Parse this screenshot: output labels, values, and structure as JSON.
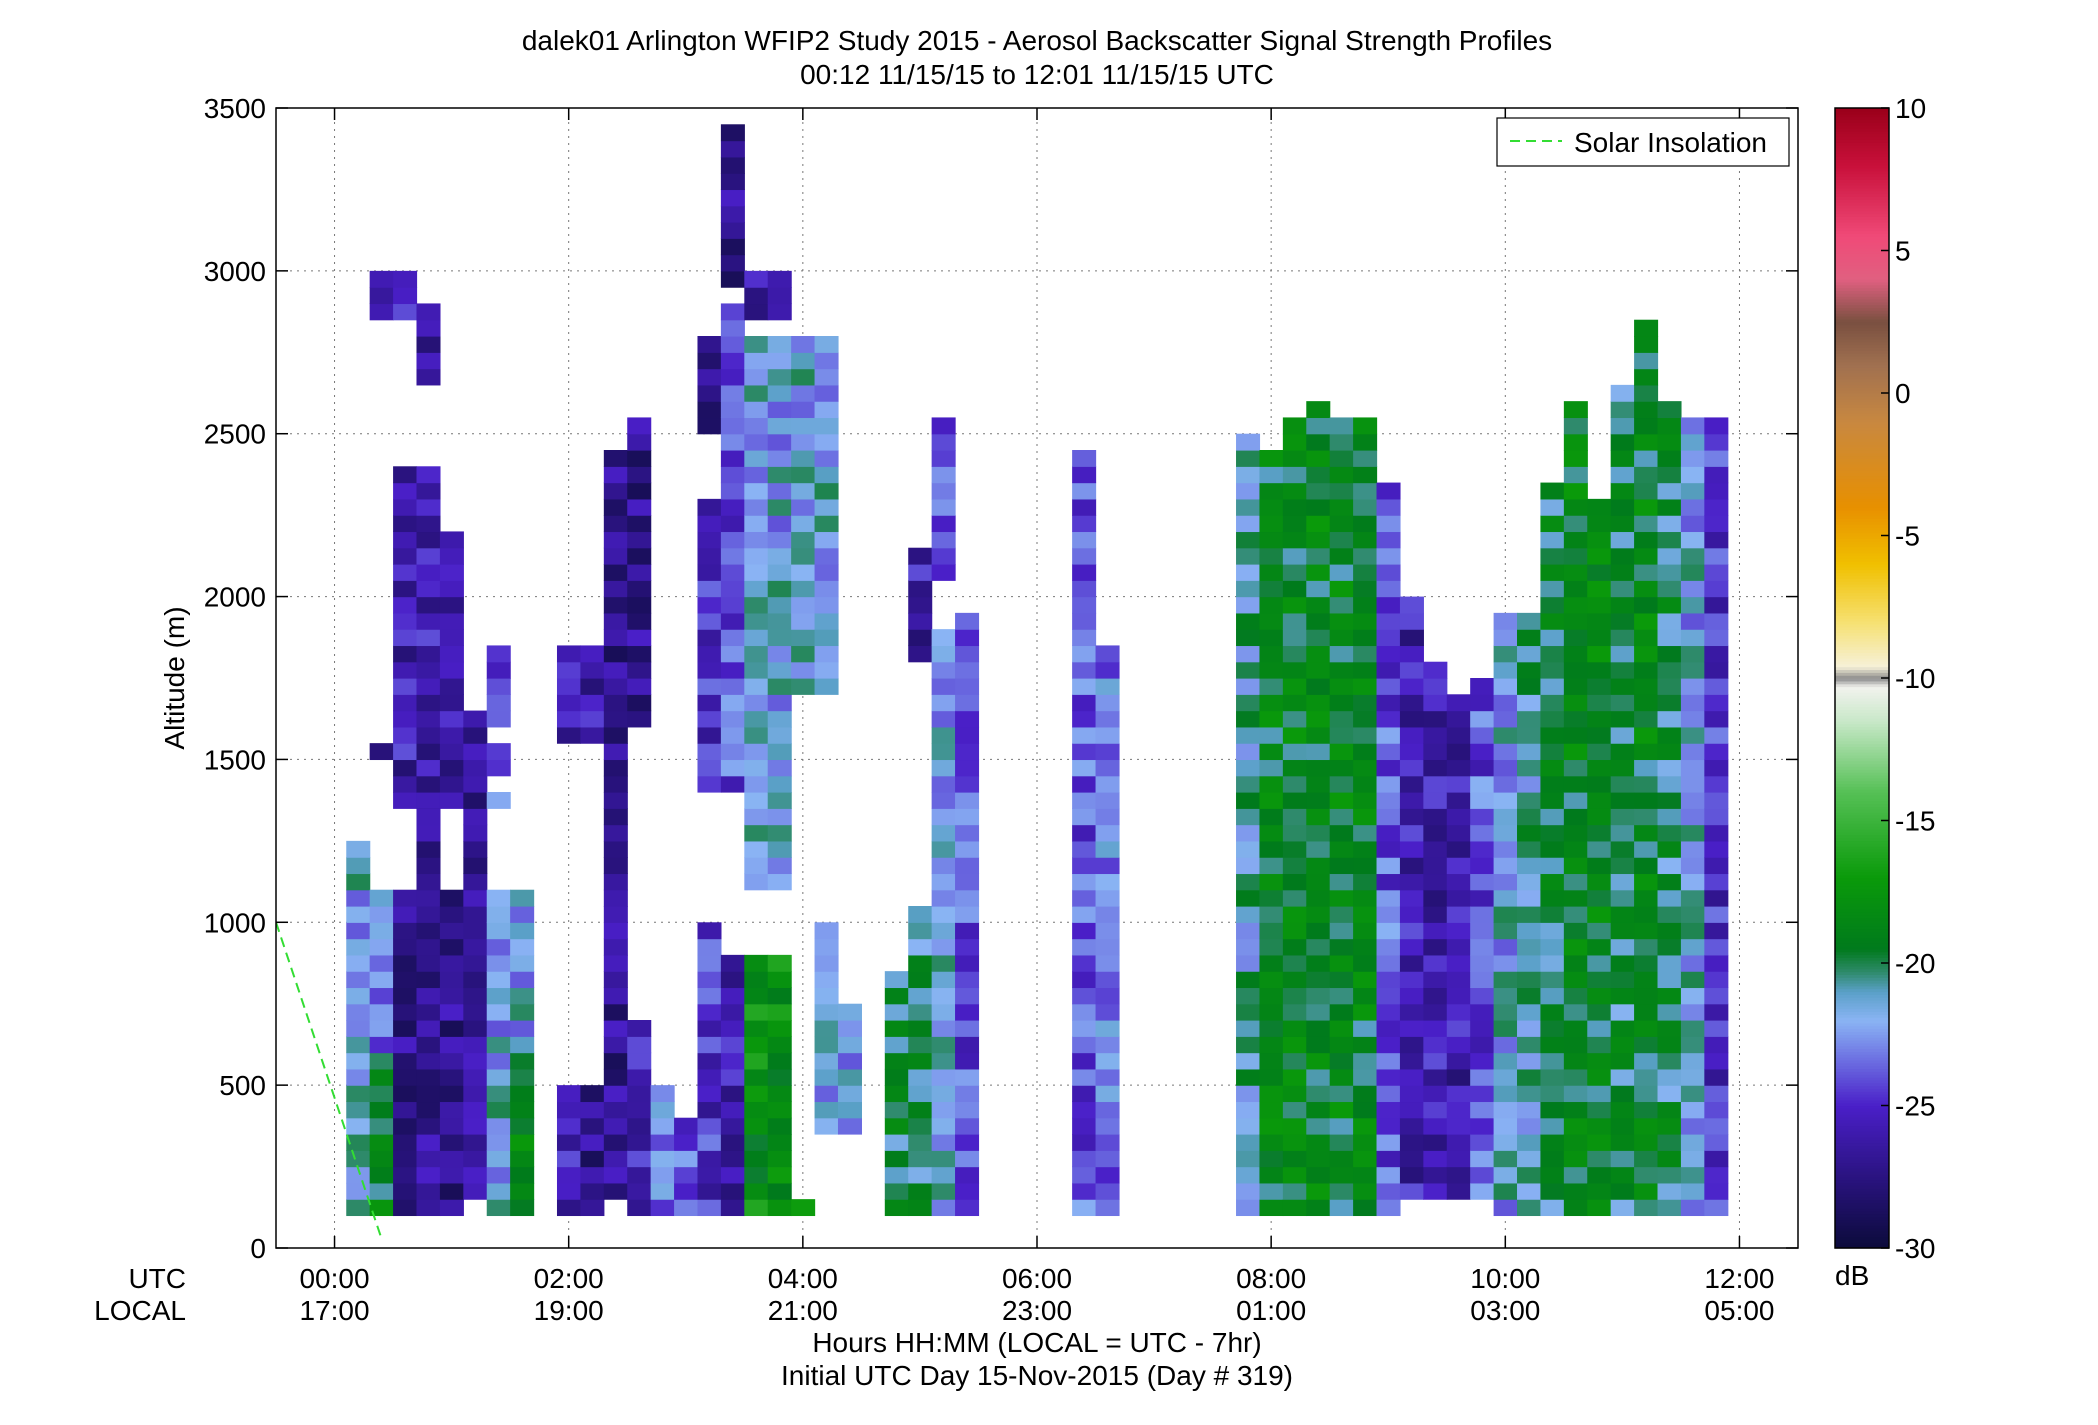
{
  "chart_data": {
    "type": "heatmap",
    "title": "dalek01 Arlington WFIP2 Study 2015 - Aerosol Backscatter Signal Strength Profiles",
    "subtitle": "00:12 11/15/15 to 12:01 11/15/15  UTC",
    "ylabel": "Altitude (m)",
    "xlabel_lines": [
      "Hours HH:MM  (LOCAL = UTC - 7hr)",
      "Initial UTC Day 15-Nov-2015 (Day # 319)"
    ],
    "x_row_labels": [
      "UTC",
      "LOCAL"
    ],
    "x_ticks_utc": [
      "00:00",
      "02:00",
      "04:00",
      "06:00",
      "08:00",
      "10:00",
      "12:00"
    ],
    "x_ticks_local": [
      "17:00",
      "19:00",
      "21:00",
      "23:00",
      "01:00",
      "03:00",
      "05:00"
    ],
    "x_tick_hours": [
      0,
      2,
      4,
      6,
      8,
      10,
      12
    ],
    "xlim_hours": [
      -0.5,
      12.5
    ],
    "y_ticks": [
      "0",
      "500",
      "1000",
      "1500",
      "2000",
      "2500",
      "3000",
      "3500"
    ],
    "ylim": [
      0,
      3500
    ],
    "grid": true,
    "legend": {
      "label": "Solar Insolation",
      "placement": "top-right",
      "color": "#33dd33",
      "style": "dashed"
    },
    "solar_insolation": {
      "x_hours": [
        -0.5,
        0.4
      ],
      "y": [
        1000,
        30
      ]
    },
    "colorbar": {
      "ticks": [
        "10",
        "5",
        "0",
        "-5",
        "-10",
        "-15",
        "-20",
        "-25",
        "-30"
      ],
      "range": [
        -30,
        10
      ],
      "unit": "dB",
      "stops": [
        {
          "v": -30,
          "c": "#0b0b3a"
        },
        {
          "v": -27.5,
          "c": "#2a1380"
        },
        {
          "v": -25,
          "c": "#4a1fc8"
        },
        {
          "v": -23.5,
          "c": "#6a6ae0"
        },
        {
          "v": -22,
          "c": "#8ab4f4"
        },
        {
          "v": -21,
          "c": "#5aa0c8"
        },
        {
          "v": -20.3,
          "c": "#2e8a6a"
        },
        {
          "v": -19.5,
          "c": "#007a1c"
        },
        {
          "v": -17,
          "c": "#0a9a0a"
        },
        {
          "v": -14,
          "c": "#55c055"
        },
        {
          "v": -11.5,
          "c": "#c8e8c8"
        },
        {
          "v": -10.3,
          "c": "#f2f2ee"
        },
        {
          "v": -10,
          "c": "#8a8a8a"
        },
        {
          "v": -9.6,
          "c": "#f6f0d8"
        },
        {
          "v": -8,
          "c": "#f6e070"
        },
        {
          "v": -6,
          "c": "#f0c000"
        },
        {
          "v": -4,
          "c": "#e89000"
        },
        {
          "v": -1,
          "c": "#c88840"
        },
        {
          "v": 1,
          "c": "#a07050"
        },
        {
          "v": 2.5,
          "c": "#7a5040"
        },
        {
          "v": 4,
          "c": "#e06080"
        },
        {
          "v": 5.5,
          "c": "#f04a78"
        },
        {
          "v": 8,
          "c": "#c8103a"
        },
        {
          "v": 10,
          "c": "#9a001a"
        }
      ]
    },
    "bin_width_hours": 0.2,
    "bin_height_m": 50,
    "columns": [
      {
        "t": 0.2,
        "segments": [
          [
            100,
            1250,
            -22
          ]
        ]
      },
      {
        "t": 0.4,
        "segments": [
          [
            100,
            600,
            -19
          ],
          [
            600,
            1100,
            -23
          ],
          [
            1500,
            1550,
            -26
          ],
          [
            2850,
            3000,
            -26
          ]
        ]
      },
      {
        "t": 0.6,
        "segments": [
          [
            100,
            1100,
            -27
          ],
          [
            1350,
            2400,
            -26
          ],
          [
            2850,
            3000,
            -26
          ]
        ]
      },
      {
        "t": 0.8,
        "segments": [
          [
            100,
            1400,
            -27
          ],
          [
            1350,
            2400,
            -26
          ],
          [
            2650,
            2900,
            -26
          ]
        ]
      },
      {
        "t": 1.0,
        "segments": [
          [
            100,
            1100,
            -27
          ],
          [
            1350,
            2200,
            -26
          ]
        ]
      },
      {
        "t": 1.2,
        "segments": [
          [
            150,
            1650,
            -27
          ]
        ]
      },
      {
        "t": 1.4,
        "segments": [
          [
            100,
            1100,
            -22
          ],
          [
            1350,
            1400,
            -23
          ],
          [
            1450,
            1550,
            -23
          ],
          [
            1600,
            1750,
            -25
          ],
          [
            1750,
            1850,
            -26
          ]
        ]
      },
      {
        "t": 1.6,
        "segments": [
          [
            100,
            600,
            -19
          ],
          [
            600,
            1100,
            -22
          ]
        ]
      },
      {
        "t": 2.0,
        "segments": [
          [
            100,
            500,
            -26
          ],
          [
            1550,
            1850,
            -26
          ]
        ]
      },
      {
        "t": 2.2,
        "segments": [
          [
            100,
            500,
            -27
          ],
          [
            1550,
            1850,
            -26
          ]
        ]
      },
      {
        "t": 2.4,
        "segments": [
          [
            150,
            2450,
            -27
          ]
        ]
      },
      {
        "t": 2.6,
        "segments": [
          [
            100,
            700,
            -26
          ],
          [
            1600,
            2550,
            -27
          ]
        ]
      },
      {
        "t": 2.8,
        "segments": [
          [
            100,
            500,
            -23
          ]
        ]
      },
      {
        "t": 3.0,
        "segments": [
          [
            100,
            400,
            -24
          ]
        ]
      },
      {
        "t": 3.2,
        "segments": [
          [
            100,
            1000,
            -25
          ],
          [
            1400,
            2300,
            -25
          ],
          [
            2500,
            2800,
            -27
          ]
        ]
      },
      {
        "t": 3.4,
        "segments": [
          [
            100,
            900,
            -26
          ],
          [
            1400,
            2900,
            -24
          ],
          [
            2950,
            3450,
            -27
          ]
        ]
      },
      {
        "t": 3.6,
        "segments": [
          [
            100,
            900,
            -18
          ],
          [
            1100,
            2800,
            -22
          ],
          [
            2850,
            3000,
            -26
          ]
        ]
      },
      {
        "t": 3.8,
        "segments": [
          [
            100,
            900,
            -18
          ],
          [
            1100,
            2800,
            -22
          ],
          [
            2850,
            3000,
            -26
          ]
        ]
      },
      {
        "t": 4.0,
        "segments": [
          [
            100,
            150,
            -17
          ],
          [
            1700,
            2800,
            -22
          ]
        ]
      },
      {
        "t": 4.2,
        "segments": [
          [
            350,
            1000,
            -22
          ],
          [
            1700,
            2800,
            -22
          ]
        ]
      },
      {
        "t": 4.4,
        "segments": [
          [
            350,
            750,
            -22
          ]
        ]
      },
      {
        "t": 4.8,
        "segments": [
          [
            100,
            850,
            -20
          ]
        ]
      },
      {
        "t": 5.0,
        "segments": [
          [
            100,
            1050,
            -20
          ],
          [
            1800,
            2150,
            -26
          ]
        ]
      },
      {
        "t": 5.2,
        "segments": [
          [
            100,
            1900,
            -22
          ],
          [
            2050,
            2550,
            -24
          ]
        ]
      },
      {
        "t": 5.4,
        "segments": [
          [
            100,
            1950,
            -24
          ]
        ]
      },
      {
        "t": 6.4,
        "segments": [
          [
            100,
            2450,
            -24
          ]
        ]
      },
      {
        "t": 6.6,
        "segments": [
          [
            100,
            1850,
            -23
          ]
        ]
      },
      {
        "t": 7.8,
        "segments": [
          [
            100,
            2500,
            -21
          ]
        ]
      },
      {
        "t": 8.0,
        "segments": [
          [
            100,
            2450,
            -19
          ]
        ]
      },
      {
        "t": 8.2,
        "segments": [
          [
            100,
            2550,
            -19
          ]
        ]
      },
      {
        "t": 8.4,
        "segments": [
          [
            100,
            2600,
            -19
          ]
        ]
      },
      {
        "t": 8.6,
        "segments": [
          [
            100,
            2550,
            -19
          ]
        ]
      },
      {
        "t": 8.8,
        "segments": [
          [
            100,
            2550,
            -19
          ]
        ]
      },
      {
        "t": 9.0,
        "segments": [
          [
            100,
            2350,
            -24
          ]
        ]
      },
      {
        "t": 9.2,
        "segments": [
          [
            150,
            2000,
            -26
          ]
        ]
      },
      {
        "t": 9.4,
        "segments": [
          [
            150,
            1800,
            -26
          ]
        ]
      },
      {
        "t": 9.6,
        "segments": [
          [
            150,
            1700,
            -26
          ]
        ]
      },
      {
        "t": 9.8,
        "segments": [
          [
            150,
            1750,
            -24
          ]
        ]
      },
      {
        "t": 10.0,
        "segments": [
          [
            100,
            1950,
            -22
          ]
        ]
      },
      {
        "t": 10.2,
        "segments": [
          [
            100,
            1950,
            -21
          ]
        ]
      },
      {
        "t": 10.4,
        "segments": [
          [
            100,
            2350,
            -20
          ]
        ]
      },
      {
        "t": 10.6,
        "segments": [
          [
            100,
            2600,
            -19
          ]
        ]
      },
      {
        "t": 10.8,
        "segments": [
          [
            100,
            2300,
            -19
          ]
        ]
      },
      {
        "t": 11.0,
        "segments": [
          [
            100,
            2650,
            -20
          ]
        ]
      },
      {
        "t": 11.2,
        "segments": [
          [
            100,
            2850,
            -19
          ]
        ]
      },
      {
        "t": 11.4,
        "segments": [
          [
            100,
            2600,
            -20
          ]
        ]
      },
      {
        "t": 11.6,
        "segments": [
          [
            100,
            2550,
            -22
          ]
        ]
      },
      {
        "t": 11.8,
        "segments": [
          [
            100,
            2550,
            -25
          ]
        ]
      }
    ]
  }
}
